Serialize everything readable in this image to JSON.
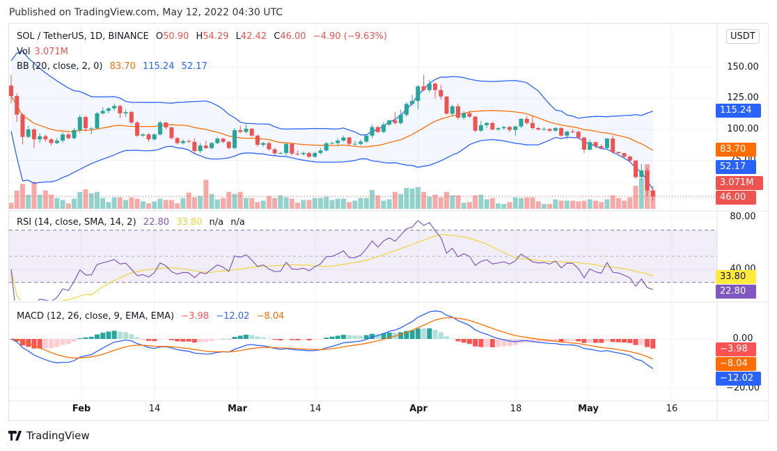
{
  "header": {
    "published": "Published on TradingView.com, May 12, 2022 04:30 UTC"
  },
  "legend": {
    "symbol": "SOL / TetherUS, 1D, BINANCE",
    "o_label": "O",
    "o": "50.90",
    "h_label": "H",
    "h": "54.29",
    "l_label": "L",
    "l": "42.42",
    "c_label": "C",
    "c": "46.00",
    "change": "−4.90 (−9.63%)",
    "vol_label": "Vol",
    "vol": "3.071M",
    "bb_label": "BB (20, close, 2, 0)",
    "bb_mid": "83.70",
    "bb_upper": "115.24",
    "bb_lower": "52.17",
    "rsi_label": "RSI (14, close, SMA, 14, 2)",
    "rsi": "22.80",
    "rsi_ma": "33.80",
    "na1": "n/a",
    "na2": "n/a",
    "macd_label": "MACD (12, 26, close, 9, EMA, EMA)",
    "macd_hist": "−3.98",
    "macd": "−12.02",
    "macd_signal": "−8.04"
  },
  "price_axis": {
    "currency": "USDT",
    "ticks": [
      "150.00",
      "125.00",
      "100.00",
      "75.00"
    ],
    "tags": {
      "bb_upper": "115.24",
      "bb_mid": "83.70",
      "bb_lower": "52.17",
      "volume": "3.071M",
      "last": "46.00"
    }
  },
  "rsi_axis": {
    "ticks": [
      "80.00",
      "40.00"
    ],
    "tags": {
      "rsi_ma": "33.80",
      "rsi": "22.80"
    }
  },
  "macd_axis": {
    "ticks": [
      "0.00",
      "−20.00"
    ],
    "tags": {
      "hist": "−3.98",
      "signal": "−8.04",
      "macd": "−12.02"
    }
  },
  "time_axis": [
    "Feb",
    "14",
    "Mar",
    "14",
    "Apr",
    "18",
    "May",
    "16"
  ],
  "footer": {
    "brand": "TradingView"
  },
  "colors": {
    "up": "#26a69a",
    "down": "#ef5350",
    "bb_band": "#2962ff",
    "bb_basis": "#ff6d00",
    "rsi": "#7e57c2",
    "rsi_ma": "#f2d43a",
    "macd": "#2962ff",
    "signal": "#ff6d00",
    "hist_up_strong": "#26a69a",
    "hist_up_weak": "#b2dfdb",
    "hist_down_strong": "#ff5252",
    "hist_down_weak": "#ffcdd2"
  },
  "chart_data": {
    "type": "candlestick",
    "title": "SOL / TetherUS, 1D, BINANCE",
    "date_range": [
      "2022-01-20",
      "2022-05-12"
    ],
    "ylim": [
      40,
      160
    ],
    "grid": true,
    "candles_ohlc": [
      [
        135.4,
        144,
        121,
        127
      ],
      [
        127,
        129,
        106,
        112
      ],
      [
        112,
        113,
        88,
        94
      ],
      [
        94,
        103,
        93,
        100
      ],
      [
        100,
        101,
        85,
        92
      ],
      [
        92,
        97,
        89,
        94.5
      ],
      [
        94.5,
        96,
        90,
        92
      ],
      [
        92,
        93,
        87,
        89
      ],
      [
        89,
        93,
        88,
        91
      ],
      [
        91,
        98,
        89,
        96
      ],
      [
        96,
        97,
        92,
        93
      ],
      [
        93,
        101,
        92,
        99.5
      ],
      [
        99.5,
        112,
        97,
        110
      ],
      [
        110,
        111,
        98,
        101
      ],
      [
        101,
        102,
        96,
        101
      ],
      [
        101,
        114,
        100,
        113
      ],
      [
        113,
        118,
        112,
        115
      ],
      [
        115,
        118,
        113,
        117
      ],
      [
        117,
        121,
        115,
        119
      ],
      [
        119,
        120,
        109,
        113
      ],
      [
        113,
        116,
        110,
        114
      ],
      [
        114,
        115,
        104,
        105.6
      ],
      [
        105.6,
        107,
        94,
        95
      ],
      [
        95,
        97,
        94,
        96
      ],
      [
        96,
        97,
        90,
        92
      ],
      [
        92,
        97,
        91,
        96
      ],
      [
        96,
        107,
        95,
        105.6
      ],
      [
        105.6,
        106,
        100,
        101.7
      ],
      [
        101.7,
        102,
        92,
        93
      ],
      [
        93,
        94,
        88,
        89
      ],
      [
        89,
        92,
        88,
        90.6
      ],
      [
        90.6,
        92,
        89,
        90
      ],
      [
        90,
        93,
        81,
        82.6
      ],
      [
        82.6,
        89,
        81,
        87
      ],
      [
        87,
        91,
        84,
        85
      ],
      [
        85,
        90,
        84,
        89
      ],
      [
        89,
        94,
        88,
        92.6
      ],
      [
        92.6,
        93,
        89,
        90
      ],
      [
        90,
        91,
        84,
        85
      ],
      [
        85,
        101,
        84,
        99.4
      ],
      [
        99.4,
        103,
        97,
        98
      ],
      [
        98,
        104,
        97,
        100.6
      ],
      [
        100.6,
        101,
        94,
        95
      ],
      [
        95,
        96,
        86,
        87.6
      ],
      [
        87.6,
        90,
        86,
        89
      ],
      [
        89,
        90,
        83,
        84
      ],
      [
        84,
        85,
        79,
        80.7
      ],
      [
        80.7,
        82,
        80,
        81
      ],
      [
        81,
        89,
        79,
        88.4
      ],
      [
        88.4,
        89,
        79,
        80.5
      ],
      [
        80.5,
        83,
        79,
        80
      ],
      [
        80,
        82,
        79,
        81
      ],
      [
        81,
        82,
        77,
        78
      ],
      [
        78,
        82,
        77,
        81
      ],
      [
        81,
        85,
        80,
        83
      ],
      [
        83,
        90,
        82,
        88.8
      ],
      [
        88.8,
        90,
        88,
        89
      ],
      [
        89,
        93,
        87,
        91
      ],
      [
        91,
        95,
        90,
        93.5
      ],
      [
        93.5,
        94,
        87,
        88.4
      ],
      [
        88.4,
        91,
        87,
        88.4
      ],
      [
        88.4,
        92,
        87,
        90.2
      ],
      [
        90.2,
        96,
        89,
        95
      ],
      [
        95,
        104,
        93,
        101.9
      ],
      [
        101.9,
        103,
        97,
        98
      ],
      [
        98,
        106,
        97,
        104
      ],
      [
        104,
        108,
        103,
        107.3
      ],
      [
        107.3,
        114,
        104,
        105.2
      ],
      [
        105.2,
        116,
        104,
        111.8
      ],
      [
        111.8,
        122,
        110,
        120.6
      ],
      [
        120.6,
        128,
        119,
        123
      ],
      [
        123,
        136,
        116,
        134.8
      ],
      [
        134.8,
        144,
        131,
        131.8
      ],
      [
        131.8,
        140,
        130,
        137
      ],
      [
        137,
        138,
        125,
        131.8
      ],
      [
        131.8,
        136,
        124,
        126.6
      ],
      [
        126.6,
        127,
        112,
        112.7
      ],
      [
        112.7,
        120,
        111,
        118.7
      ],
      [
        118.7,
        121,
        108,
        109.5
      ],
      [
        109.5,
        115,
        108,
        113.1
      ],
      [
        113.1,
        115,
        109,
        110.3
      ],
      [
        110.3,
        111,
        98,
        99
      ],
      [
        99,
        107,
        98,
        103.4
      ],
      [
        103.4,
        106,
        101,
        105.2
      ],
      [
        105.2,
        106,
        99,
        100
      ],
      [
        100,
        102,
        99,
        101
      ],
      [
        101,
        103,
        100,
        102
      ],
      [
        102,
        103,
        98,
        99.6
      ],
      [
        99.6,
        103,
        95,
        102.4
      ],
      [
        102.4,
        109,
        101,
        108.6
      ],
      [
        108.6,
        111,
        104,
        105.2
      ],
      [
        105.2,
        111,
        100,
        101.1
      ],
      [
        101.1,
        102,
        99,
        100
      ],
      [
        100,
        102,
        99,
        100.4
      ],
      [
        100.4,
        101,
        98,
        99
      ],
      [
        99,
        102,
        98,
        101.1
      ],
      [
        101.1,
        102,
        94,
        95
      ],
      [
        95,
        99,
        92,
        98.3
      ],
      [
        98.3,
        100,
        97,
        98.1
      ],
      [
        98.1,
        99,
        92,
        93.5
      ],
      [
        93.5,
        94,
        81,
        83.7
      ],
      [
        83.7,
        92,
        83,
        89.7
      ],
      [
        89.7,
        90,
        85,
        86.5
      ],
      [
        86.5,
        88,
        84,
        85
      ],
      [
        85,
        93,
        84,
        92.7
      ],
      [
        92.7,
        95,
        80,
        81.8
      ],
      [
        81.8,
        82,
        80,
        80.9
      ],
      [
        80.9,
        81,
        77,
        78.1
      ],
      [
        78.1,
        79,
        74,
        74.9
      ],
      [
        74.9,
        75,
        60,
        61.6
      ],
      [
        61.6,
        72,
        59,
        66.9
      ],
      [
        66.9,
        69,
        46,
        50.9
      ],
      [
        50.9,
        54.29,
        42.42,
        46
      ]
    ],
    "volume_millions": [
      1.06,
      3.19,
      4.37,
      2.48,
      4.73,
      2.48,
      3.19,
      2.48,
      1.89,
      1.54,
      0.95,
      1.77,
      2.96,
      3.43,
      2.72,
      2.96,
      1.89,
      1.18,
      2.01,
      2.01,
      1.54,
      2.01,
      1.77,
      1.3,
      0.95,
      1.3,
      1.77,
      1.54,
      1.54,
      0.95,
      1.89,
      2.84,
      2.01,
      2.25,
      5.08,
      2.6,
      1.65,
      1.89,
      2.96,
      2.6,
      2.96,
      1.89,
      1.89,
      1.18,
      1.42,
      2.25,
      1.89,
      2.36,
      2.01,
      1.77,
      1.06,
      1.54,
      1.54,
      1.89,
      1.89,
      2.13,
      1.54,
      1.77,
      1.77,
      1.18,
      1.42,
      1.89,
      1.89,
      3.31,
      2.36,
      1.42,
      1.65,
      2.96,
      2.6,
      3.66,
      3.55,
      3.78,
      2.96,
      2.13,
      2.48,
      2.01,
      2.96,
      2.36,
      2.36,
      1.06,
      1.18,
      2.36,
      2.48,
      1.65,
      1.89,
      0.95,
      0.83,
      1.18,
      2.01,
      1.89,
      2.01,
      2.01,
      1.3,
      0.83,
      0.83,
      1.65,
      1.42,
      1.42,
      1.42,
      1.3,
      1.42,
      1.65,
      1.42,
      1.18,
      1.65,
      2.36,
      1.89,
      1.42,
      2.01,
      4.02,
      5.32,
      7.8,
      3.071
    ],
    "rsi_levels": [
      70,
      50,
      30
    ]
  }
}
